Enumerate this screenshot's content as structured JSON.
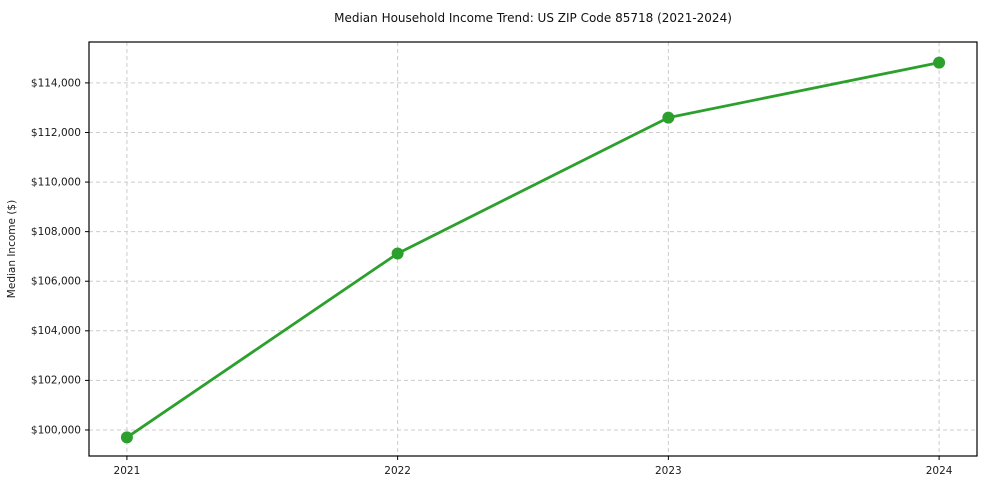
{
  "chart_data": {
    "type": "line",
    "title": "Median Household Income Trend: US ZIP Code 85718 (2021-2024)",
    "xlabel": "",
    "ylabel": "Median Income ($)",
    "x": [
      2021,
      2022,
      2023,
      2024
    ],
    "values": [
      99700,
      107120,
      112600,
      114820
    ],
    "series_name": "Median Household Income",
    "xticks": [
      2021,
      2022,
      2023,
      2024
    ],
    "xtick_labels": [
      "2021",
      "2022",
      "2023",
      "2024"
    ],
    "yticks": [
      100000,
      102000,
      104000,
      106000,
      108000,
      110000,
      112000,
      114000
    ],
    "ytick_labels": [
      "$100,000",
      "$102,000",
      "$104,000",
      "$106,000",
      "$108,000",
      "$110,000",
      "$112,000",
      "$114,000"
    ],
    "xlim": [
      2020.86,
      2024.14
    ],
    "ylim": [
      98950,
      115650
    ],
    "grid": true,
    "grid_style": "dashed",
    "legend": "none",
    "line_color": "#2ca02c",
    "marker": "circle",
    "marker_size": 6,
    "background_color": "#ffffff",
    "text_color": "#1a1a1a"
  }
}
